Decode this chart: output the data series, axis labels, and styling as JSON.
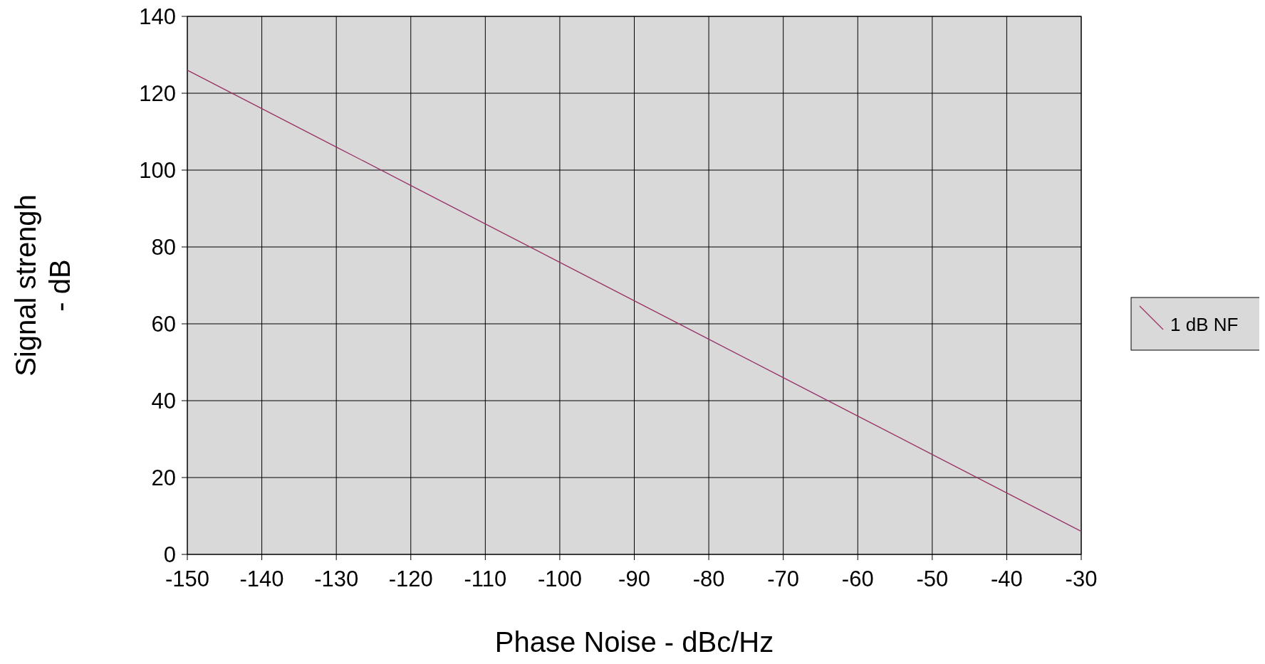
{
  "chart_data": {
    "type": "line",
    "xlabel": "Phase Noise - dBc/Hz",
    "ylabel": "Signal strengh - dB",
    "x": [
      -150,
      -140,
      -130,
      -120,
      -110,
      -100,
      -90,
      -80,
      -70,
      -60,
      -50,
      -40,
      -30
    ],
    "series": [
      {
        "name": "1 dB NF",
        "color": "#993366",
        "values": [
          126,
          116,
          106,
          96,
          86,
          76,
          66,
          56,
          46,
          36,
          26,
          16,
          6
        ]
      }
    ],
    "xlim": [
      -150,
      -30
    ],
    "xticks": [
      -150,
      -140,
      -130,
      -120,
      -110,
      -100,
      -90,
      -80,
      -70,
      -60,
      -50,
      -40,
      -30
    ],
    "ylim": [
      0,
      140
    ],
    "yticks": [
      0,
      20,
      40,
      60,
      80,
      100,
      120,
      140
    ],
    "grid": true,
    "legend": "right",
    "marker": "none",
    "line_style": "solid"
  }
}
